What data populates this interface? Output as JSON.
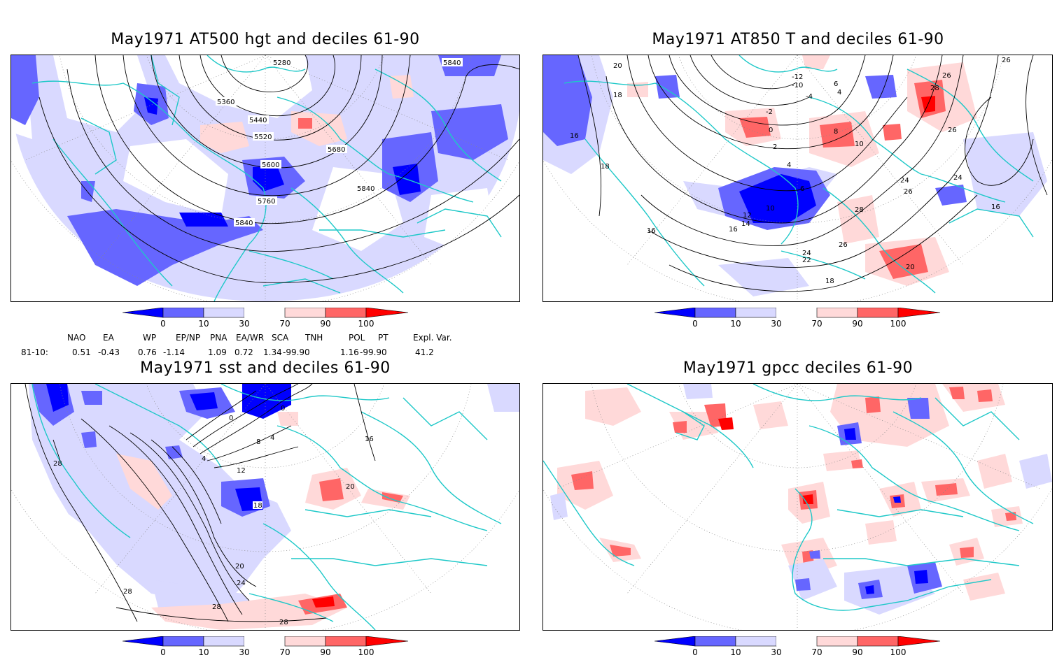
{
  "panels": {
    "hgt": {
      "title": "May1971 AT500 hgt and deciles 61-90",
      "contour_labels": [
        "5280",
        "5840",
        "5360",
        "5440",
        "5520",
        "5680",
        "5600",
        "5840",
        "5760",
        "5840"
      ]
    },
    "t850": {
      "title": "May1971 AT850 T and deciles 61-90",
      "contour_labels": [
        "20",
        "26",
        "-12",
        "-10",
        "-4",
        "6",
        "4",
        "26",
        "28",
        "18",
        "-2",
        "0",
        "2",
        "8",
        "10",
        "26",
        "16",
        "18",
        "4",
        "6",
        "10",
        "24",
        "12",
        "14",
        "16",
        "26",
        "28",
        "24",
        "16",
        "16",
        "26",
        "24",
        "22",
        "18",
        "20"
      ]
    },
    "sst": {
      "title": "May1971 sst and deciles 61-90",
      "contour_labels": [
        "0",
        "0",
        "4",
        "8",
        "4",
        "12",
        "16",
        "28",
        "18",
        "20",
        "20",
        "24",
        "28",
        "28",
        "28"
      ]
    },
    "gpcc": {
      "title": "May1971 gpcc deciles 61-90"
    }
  },
  "colorbar": {
    "ticks": [
      "0",
      "10",
      "30",
      "70",
      "90",
      "100"
    ],
    "colors": [
      "#0000ff",
      "#6666ff",
      "#d9d9ff",
      "#ffffff",
      "#ffd9d9",
      "#ff6666",
      "#ff0000"
    ]
  },
  "indices": {
    "headers": [
      "NAO",
      "EA",
      "WP",
      "EP/NP",
      "PNA",
      "EA/WR",
      "SCA",
      "TNH",
      "POL",
      "PT",
      "Expl. Var."
    ],
    "row_label": "81-10:",
    "values": [
      "0.51",
      "-0.43",
      "0.76",
      "-1.14",
      "1.09",
      "0.72",
      "1.34",
      "-99.90",
      "1.16",
      "-99.90",
      "41.2"
    ]
  }
}
